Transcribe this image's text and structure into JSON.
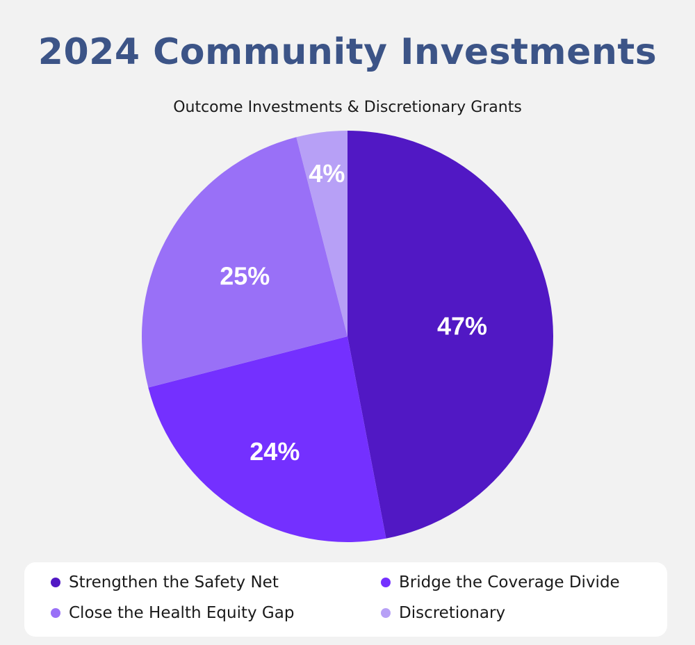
{
  "header": {
    "title": "2024 Community Investments"
  },
  "chart_data": {
    "type": "pie",
    "title": "2024 Community Investments",
    "subtitle": "Outcome Investments & Discretionary Grants",
    "categories": [
      "Strengthen the Safety Net",
      "Bridge the Coverage Divide",
      "Close the Health Equity Gap",
      "Discretionary"
    ],
    "values": [
      47,
      24,
      25,
      4
    ],
    "labels": [
      "47%",
      "24%",
      "25%",
      "4%"
    ],
    "colors": [
      "#5118c4",
      "#7430ff",
      "#9970f7",
      "#b7a0f6"
    ],
    "legend_position": "bottom"
  }
}
